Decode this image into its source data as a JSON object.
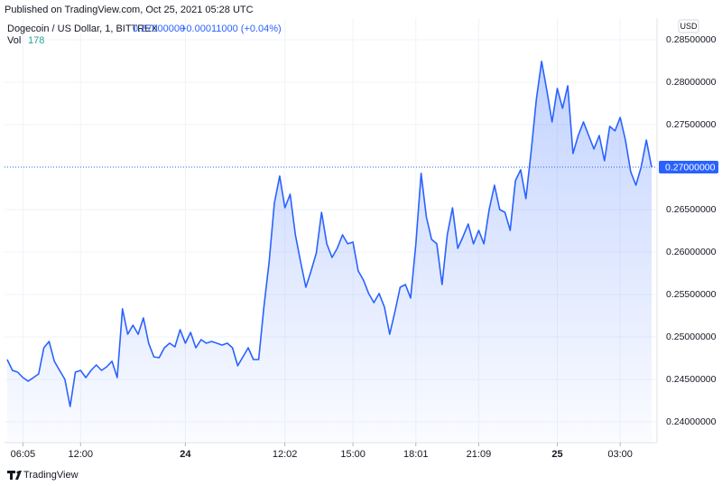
{
  "header": {
    "published": "Published on TradingView.com, Oct 25, 2021 05:28 UTC"
  },
  "footer": {
    "brand": "TradingView"
  },
  "chart_data": {
    "type": "area",
    "title": "Dogecoin / US Dollar, 1, BITTREX",
    "last_price": {
      "value": 0.27,
      "label": "0.27000000"
    },
    "change": "+0.00011000 (+0.04%)",
    "volume_label": "Vol",
    "volume": 178,
    "currency": "USD",
    "color": "#2962ff",
    "grid": true,
    "values": [
      0.24734,
      0.24606,
      0.24585,
      0.24521,
      0.24479,
      0.24521,
      0.24564,
      0.24872,
      0.24947,
      0.24713,
      0.24606,
      0.245,
      0.24181,
      0.24585,
      0.24606,
      0.24521,
      0.24606,
      0.2467,
      0.24606,
      0.24649,
      0.24713,
      0.24521,
      0.2533,
      0.25032,
      0.25138,
      0.25032,
      0.25224,
      0.24926,
      0.24766,
      0.24755,
      0.24872,
      0.24926,
      0.24883,
      0.25085,
      0.24926,
      0.25053,
      0.24872,
      0.24968,
      0.24926,
      0.24947,
      0.24926,
      0.24904,
      0.24926,
      0.24872,
      0.2466,
      0.24766,
      0.24872,
      0.24734,
      0.24734,
      0.25351,
      0.25883,
      0.26575,
      0.26894,
      0.26521,
      0.26681,
      0.26202,
      0.25883,
      0.25585,
      0.25777,
      0.25989,
      0.26468,
      0.26096,
      0.25936,
      0.26043,
      0.26202,
      0.26096,
      0.26117,
      0.25777,
      0.2567,
      0.25511,
      0.25404,
      0.25511,
      0.25351,
      0.25032,
      0.25298,
      0.25585,
      0.25617,
      0.25458,
      0.26096,
      0.26926,
      0.26415,
      0.26149,
      0.26096,
      0.25617,
      0.26202,
      0.26521,
      0.26043,
      0.26181,
      0.2633,
      0.26096,
      0.26255,
      0.26096,
      0.265,
      0.26787,
      0.265,
      0.26468,
      0.26255,
      0.2684,
      0.26968,
      0.26628,
      0.27181,
      0.27798,
      0.28245,
      0.27904,
      0.27532,
      0.27926,
      0.27692,
      0.27957,
      0.2716,
      0.27372,
      0.27532,
      0.27372,
      0.27213,
      0.27372,
      0.27075,
      0.27479,
      0.27426,
      0.27585,
      0.27319,
      0.26947,
      0.26787,
      0.27,
      0.27319,
      0.27
    ],
    "xlim": [
      0,
      123
    ],
    "xticks": [
      {
        "value": 3,
        "label": "06:05"
      },
      {
        "value": 14,
        "label": "12:00"
      },
      {
        "value": 34,
        "label": "24"
      },
      {
        "value": 53,
        "label": "12:02"
      },
      {
        "value": 66,
        "label": "15:00"
      },
      {
        "value": 78,
        "label": "18:01"
      },
      {
        "value": 90,
        "label": "21:09"
      },
      {
        "value": 105,
        "label": "25"
      },
      {
        "value": 117,
        "label": "03:00"
      }
    ],
    "ylim": [
      0.23755,
      0.28755
    ],
    "yticks": [
      {
        "value": 0.24,
        "label": "0.24000000"
      },
      {
        "value": 0.245,
        "label": "0.24500000"
      },
      {
        "value": 0.25,
        "label": "0.25000000"
      },
      {
        "value": 0.255,
        "label": "0.25500000"
      },
      {
        "value": 0.26,
        "label": "0.26000000"
      },
      {
        "value": 0.265,
        "label": "0.26500000"
      },
      {
        "value": 0.275,
        "label": "0.27500000"
      },
      {
        "value": 0.28,
        "label": "0.28000000"
      },
      {
        "value": 0.285,
        "label": "0.28500000"
      }
    ]
  }
}
